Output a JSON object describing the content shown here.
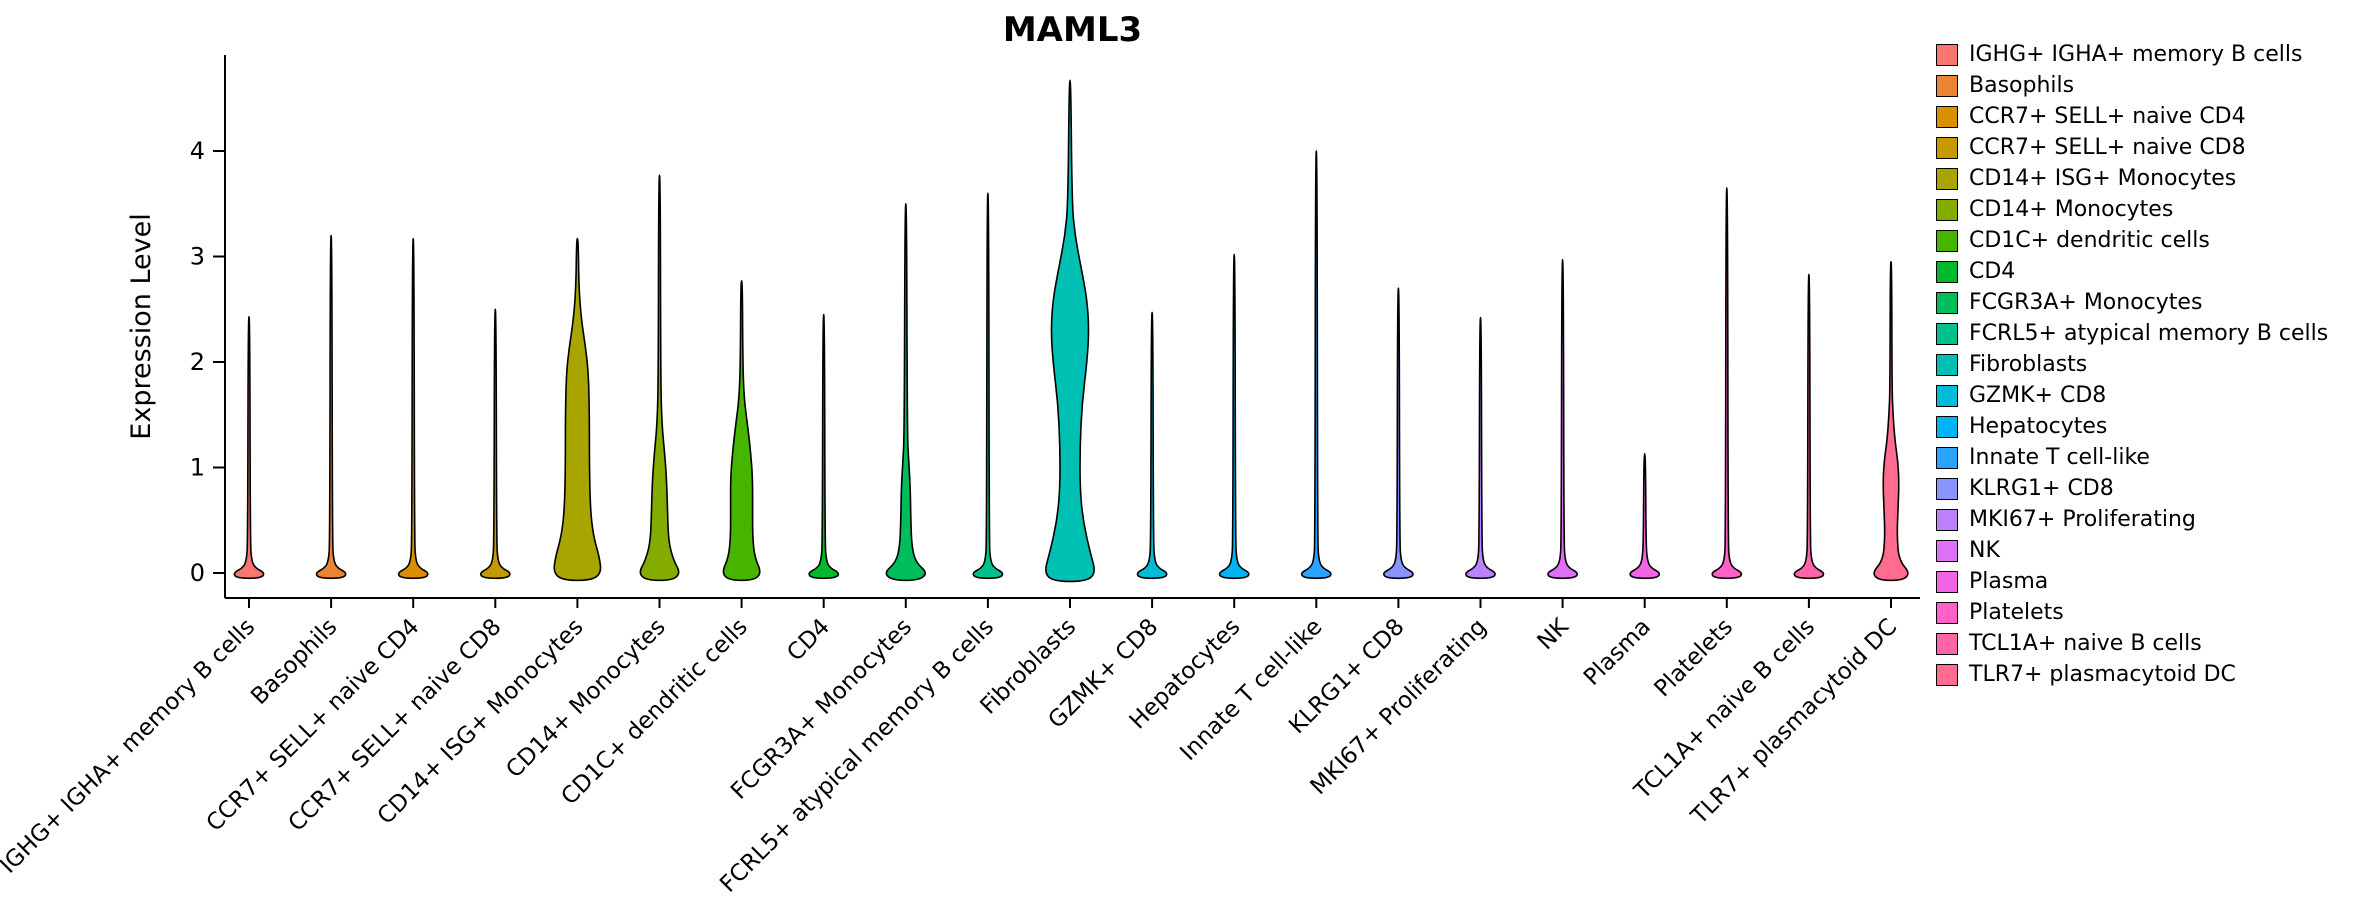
{
  "chart_data": {
    "type": "violin",
    "title": "MAML3",
    "xlabel": "",
    "ylabel": "Expression Level",
    "yticks": [
      0,
      1,
      2,
      3,
      4
    ],
    "ylim": [
      -0.1,
      4.9
    ],
    "xtick_rotation": 45,
    "legend_position": "right",
    "grid": false,
    "categories": [
      "IGHG+ IGHA+ memory B cells",
      "Basophils",
      "CCR7+ SELL+ naive CD4",
      "CCR7+ SELL+ naive CD8",
      "CD14+ ISG+ Monocytes",
      "CD14+ Monocytes",
      "CD1C+ dendritic cells",
      "CD4",
      "FCGR3A+ Monocytes",
      "FCRL5+ atypical memory B cells",
      "Fibroblasts",
      "GZMK+ CD8",
      "Hepatocytes",
      "Innate T cell-like",
      "KLRG1+ CD8",
      "MKI67+ Proliferating",
      "NK",
      "Plasma",
      "Platelets",
      "TCL1A+ naive B cells",
      "TLR7+ plasmacytoid DC"
    ],
    "series": [
      {
        "label": "IGHG+ IGHA+ memory B cells",
        "color": "#F8766D",
        "max": 2.43,
        "profile": [
          [
            -0.05,
            12
          ],
          [
            0,
            16
          ],
          [
            0.05,
            6
          ],
          [
            0.12,
            2.5
          ],
          [
            0.3,
            1.3
          ],
          [
            2.43,
            0.8
          ]
        ]
      },
      {
        "label": "Basophils",
        "color": "#EB8335",
        "max": 3.2,
        "profile": [
          [
            -0.05,
            12
          ],
          [
            0,
            16
          ],
          [
            0.05,
            6
          ],
          [
            0.12,
            2.5
          ],
          [
            0.3,
            1.3
          ],
          [
            3.2,
            0.8
          ]
        ]
      },
      {
        "label": "CCR7+ SELL+ naive CD4",
        "color": "#DA8F00",
        "max": 3.17,
        "profile": [
          [
            -0.05,
            12
          ],
          [
            0,
            16
          ],
          [
            0.05,
            6
          ],
          [
            0.12,
            2.5
          ],
          [
            0.3,
            1.3
          ],
          [
            3.17,
            0.8
          ]
        ]
      },
      {
        "label": "CCR7+ SELL+ naive CD8",
        "color": "#C49A00",
        "max": 2.5,
        "profile": [
          [
            -0.05,
            12
          ],
          [
            0,
            16
          ],
          [
            0.05,
            6
          ],
          [
            0.12,
            2.5
          ],
          [
            0.3,
            1.3
          ],
          [
            2.5,
            0.8
          ]
        ]
      },
      {
        "label": "CD14+ ISG+ Monocytes",
        "color": "#A8A400",
        "max": 3.17,
        "profile": [
          [
            -0.07,
            14
          ],
          [
            0,
            24
          ],
          [
            0.15,
            22
          ],
          [
            0.35,
            16
          ],
          [
            0.6,
            13
          ],
          [
            1.0,
            12
          ],
          [
            1.5,
            12
          ],
          [
            1.9,
            11
          ],
          [
            2.15,
            8
          ],
          [
            2.4,
            4
          ],
          [
            2.7,
            1.5
          ],
          [
            3.17,
            0.8
          ]
        ]
      },
      {
        "label": "CD14+ Monocytes",
        "color": "#84AC00",
        "max": 3.77,
        "profile": [
          [
            -0.07,
            13
          ],
          [
            0,
            21
          ],
          [
            0.12,
            14
          ],
          [
            0.3,
            9
          ],
          [
            0.6,
            8
          ],
          [
            0.9,
            7
          ],
          [
            1.15,
            5
          ],
          [
            1.4,
            2.5
          ],
          [
            1.8,
            1.2
          ],
          [
            3.77,
            0.8
          ]
        ]
      },
      {
        "label": "CD1C+ dendritic cells",
        "color": "#45B500",
        "max": 2.77,
        "profile": [
          [
            -0.07,
            12
          ],
          [
            0,
            20
          ],
          [
            0.15,
            13
          ],
          [
            0.35,
            11
          ],
          [
            0.6,
            11
          ],
          [
            0.9,
            11
          ],
          [
            1.15,
            9
          ],
          [
            1.4,
            6
          ],
          [
            1.65,
            2.5
          ],
          [
            2.0,
            1.2
          ],
          [
            2.77,
            0.8
          ]
        ]
      },
      {
        "label": "CD4",
        "color": "#00B92A",
        "max": 2.45,
        "profile": [
          [
            -0.05,
            12
          ],
          [
            0,
            16
          ],
          [
            0.05,
            6
          ],
          [
            0.12,
            2.5
          ],
          [
            0.3,
            1.3
          ],
          [
            2.45,
            0.8
          ]
        ]
      },
      {
        "label": "FCGR3A+ Monocytes",
        "color": "#00BD5C",
        "max": 3.5,
        "profile": [
          [
            -0.07,
            13
          ],
          [
            0,
            22
          ],
          [
            0.1,
            10
          ],
          [
            0.25,
            6
          ],
          [
            0.5,
            5
          ],
          [
            0.8,
            4.5
          ],
          [
            1.05,
            3
          ],
          [
            1.3,
            1.5
          ],
          [
            3.5,
            0.8
          ]
        ]
      },
      {
        "label": "FCRL5+ atypical memory B cells",
        "color": "#00C08B",
        "max": 3.6,
        "profile": [
          [
            -0.05,
            12
          ],
          [
            0,
            16
          ],
          [
            0.05,
            6
          ],
          [
            0.12,
            2.5
          ],
          [
            0.3,
            1.3
          ],
          [
            3.6,
            0.8
          ]
        ]
      },
      {
        "label": "Fibroblasts",
        "color": "#00C0B4",
        "max": 4.67,
        "profile": [
          [
            -0.08,
            16
          ],
          [
            0,
            26
          ],
          [
            0.2,
            20
          ],
          [
            0.5,
            13
          ],
          [
            0.8,
            10
          ],
          [
            1.2,
            10
          ],
          [
            1.6,
            12
          ],
          [
            2.0,
            17
          ],
          [
            2.3,
            19
          ],
          [
            2.6,
            17
          ],
          [
            2.9,
            11
          ],
          [
            3.2,
            5
          ],
          [
            3.5,
            2
          ],
          [
            4.67,
            0.8
          ]
        ]
      },
      {
        "label": "GZMK+ CD8",
        "color": "#00BCD8",
        "max": 2.47,
        "profile": [
          [
            -0.05,
            12
          ],
          [
            0,
            16
          ],
          [
            0.05,
            6
          ],
          [
            0.12,
            2.5
          ],
          [
            0.3,
            1.3
          ],
          [
            2.47,
            0.8
          ]
        ]
      },
      {
        "label": "Hepatocytes",
        "color": "#00B3F2",
        "max": 3.02,
        "profile": [
          [
            -0.05,
            12
          ],
          [
            0,
            16
          ],
          [
            0.05,
            6
          ],
          [
            0.12,
            2.5
          ],
          [
            0.3,
            1.3
          ],
          [
            3.02,
            0.8
          ]
        ]
      },
      {
        "label": "Innate T cell-like",
        "color": "#29A3FF",
        "max": 4.0,
        "profile": [
          [
            -0.05,
            12
          ],
          [
            0,
            16
          ],
          [
            0.05,
            6
          ],
          [
            0.12,
            2.5
          ],
          [
            0.3,
            1.3
          ],
          [
            4.0,
            0.8
          ]
        ]
      },
      {
        "label": "KLRG1+ CD8",
        "color": "#8B93FF",
        "max": 2.7,
        "profile": [
          [
            -0.05,
            12
          ],
          [
            0,
            16
          ],
          [
            0.05,
            6
          ],
          [
            0.12,
            2.5
          ],
          [
            0.3,
            1.3
          ],
          [
            2.7,
            0.8
          ]
        ]
      },
      {
        "label": "MKI67+ Proliferating",
        "color": "#BC81FF",
        "max": 2.42,
        "profile": [
          [
            -0.05,
            12
          ],
          [
            0,
            16
          ],
          [
            0.05,
            6
          ],
          [
            0.12,
            2.5
          ],
          [
            0.3,
            1.3
          ],
          [
            2.42,
            0.8
          ]
        ]
      },
      {
        "label": "NK",
        "color": "#DF70F8",
        "max": 2.97,
        "profile": [
          [
            -0.05,
            12
          ],
          [
            0,
            16
          ],
          [
            0.05,
            6
          ],
          [
            0.12,
            2.5
          ],
          [
            0.3,
            1.3
          ],
          [
            2.97,
            0.8
          ]
        ]
      },
      {
        "label": "Plasma",
        "color": "#F364E4",
        "max": 1.13,
        "profile": [
          [
            -0.05,
            12
          ],
          [
            0,
            16
          ],
          [
            0.05,
            6
          ],
          [
            0.12,
            2.5
          ],
          [
            0.3,
            1.3
          ],
          [
            1.13,
            0.8
          ]
        ]
      },
      {
        "label": "Platelets",
        "color": "#FF61C7",
        "max": 3.65,
        "profile": [
          [
            -0.05,
            12
          ],
          [
            0,
            16
          ],
          [
            0.05,
            6
          ],
          [
            0.12,
            2.5
          ],
          [
            0.3,
            1.3
          ],
          [
            3.65,
            0.8
          ]
        ]
      },
      {
        "label": "TCL1A+ naive B cells",
        "color": "#FF65A8",
        "max": 2.83,
        "profile": [
          [
            -0.05,
            12
          ],
          [
            0,
            16
          ],
          [
            0.05,
            6
          ],
          [
            0.12,
            2.5
          ],
          [
            0.3,
            1.3
          ],
          [
            2.83,
            0.8
          ]
        ]
      },
      {
        "label": "TLR7+ plasmacytoid DC",
        "color": "#FF6C90",
        "max": 2.95,
        "profile": [
          [
            -0.07,
            12
          ],
          [
            0,
            19
          ],
          [
            0.12,
            8
          ],
          [
            0.35,
            6
          ],
          [
            0.6,
            7
          ],
          [
            0.85,
            8
          ],
          [
            1.05,
            7
          ],
          [
            1.25,
            4
          ],
          [
            1.5,
            2
          ],
          [
            1.75,
            1
          ],
          [
            2.95,
            0.7
          ]
        ]
      }
    ]
  }
}
